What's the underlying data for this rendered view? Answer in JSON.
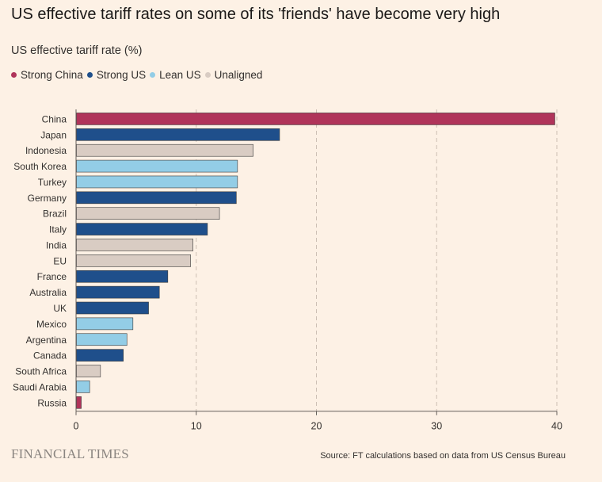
{
  "chart_data": {
    "type": "bar",
    "orientation": "horizontal",
    "title": "US effective tariff rates on some of its 'friends' have become very high",
    "subtitle": "US effective tariff rate (%)",
    "legend": [
      {
        "name": "Strong China",
        "color": "#b0345a"
      },
      {
        "name": "Strong US",
        "color": "#1f4f8b"
      },
      {
        "name": "Lean US",
        "color": "#93cde6"
      },
      {
        "name": "Unaligned",
        "color": "#d9ccc3"
      }
    ],
    "categories": [
      "China",
      "Japan",
      "Indonesia",
      "South Korea",
      "Turkey",
      "Germany",
      "Brazil",
      "Italy",
      "India",
      "EU",
      "France",
      "Australia",
      "UK",
      "Mexico",
      "Argentina",
      "Canada",
      "South Africa",
      "Saudi Arabia",
      "Russia"
    ],
    "values": [
      39.8,
      16.9,
      14.7,
      13.4,
      13.4,
      13.3,
      11.9,
      10.9,
      9.7,
      9.5,
      7.6,
      6.9,
      6.0,
      4.7,
      4.2,
      3.9,
      2.0,
      1.1,
      0.4
    ],
    "groups": [
      "Strong China",
      "Strong US",
      "Unaligned",
      "Lean US",
      "Lean US",
      "Strong US",
      "Unaligned",
      "Strong US",
      "Unaligned",
      "Unaligned",
      "Strong US",
      "Strong US",
      "Strong US",
      "Lean US",
      "Lean US",
      "Strong US",
      "Unaligned",
      "Lean US",
      "Strong China"
    ],
    "xlim": [
      0,
      40
    ],
    "xticks": [
      0,
      10,
      20,
      30,
      40
    ],
    "grid": true
  },
  "footer": {
    "logo": "FINANCIAL TIMES",
    "source": "Source: FT calculations based on data from US Census Bureau"
  }
}
